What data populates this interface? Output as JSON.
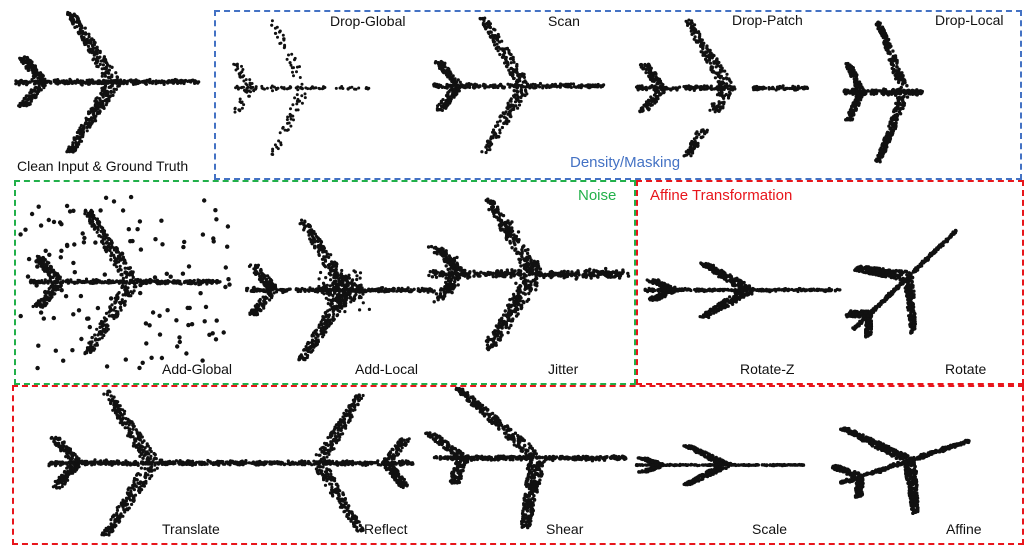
{
  "colors": {
    "density": "#4472c4",
    "noise": "#22b04a",
    "affine": "#e8151b",
    "points": "#111111"
  },
  "groups": {
    "density": "Density/Masking",
    "noise": "Noise",
    "affine": "Affine Transformation"
  },
  "panels": [
    {
      "key": "clean",
      "label": "Clean Input & Ground Truth",
      "transform": "none"
    },
    {
      "key": "drop_global",
      "label": "Drop-Global",
      "transform": "drop-global"
    },
    {
      "key": "scan",
      "label": "Scan",
      "transform": "scan"
    },
    {
      "key": "drop_patch",
      "label": "Drop-Patch",
      "transform": "drop-patch"
    },
    {
      "key": "drop_local",
      "label": "Drop-Local",
      "transform": "drop-local"
    },
    {
      "key": "add_global",
      "label": "Add-Global",
      "transform": "add-global"
    },
    {
      "key": "add_local",
      "label": "Add-Local",
      "transform": "add-local"
    },
    {
      "key": "jitter",
      "label": "Jitter",
      "transform": "jitter"
    },
    {
      "key": "rotate_z",
      "label": "Rotate-Z",
      "transform": "rotate-z"
    },
    {
      "key": "rotate",
      "label": "Rotate",
      "transform": "rotate"
    },
    {
      "key": "translate",
      "label": "Translate",
      "transform": "translate"
    },
    {
      "key": "reflect",
      "label": "Reflect",
      "transform": "reflect"
    },
    {
      "key": "shear",
      "label": "Shear",
      "transform": "shear"
    },
    {
      "key": "scale",
      "label": "Scale",
      "transform": "scale"
    },
    {
      "key": "affine",
      "label": "Affine",
      "transform": "affine"
    }
  ]
}
